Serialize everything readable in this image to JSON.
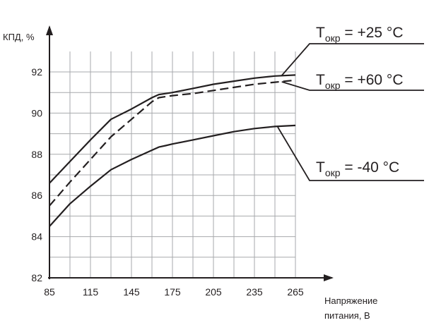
{
  "chart_data": {
    "type": "line",
    "title": "",
    "xlabel": [
      "Напряжение",
      "питания, В"
    ],
    "ylabel": "КПД, %",
    "xlim": [
      85,
      265
    ],
    "ylim": [
      82,
      92
    ],
    "x_ticks": [
      "85",
      "115",
      "145",
      "175",
      "205",
      "235",
      "265"
    ],
    "y_ticks": [
      "82",
      "84",
      "86",
      "88",
      "90",
      "92"
    ],
    "grid": true,
    "series": [
      {
        "name": "Tокр = +25 °C",
        "label_main": "T",
        "label_sub": "окр",
        "label_rest": " = +25 °C",
        "style": "solid",
        "color": "#231f20",
        "x": [
          85,
          100,
          115,
          130,
          145,
          160,
          165,
          170,
          175,
          190,
          205,
          220,
          235,
          250,
          265
        ],
        "y": [
          86.6,
          87.65,
          88.7,
          89.7,
          90.2,
          90.75,
          90.9,
          90.95,
          91.0,
          91.2,
          91.4,
          91.55,
          91.7,
          91.8,
          91.85
        ]
      },
      {
        "name": "Tокр = +60 °C",
        "label_main": "T",
        "label_sub": "окр",
        "label_rest": " = +60 °C",
        "style": "dashed",
        "color": "#231f20",
        "x": [
          85,
          100,
          115,
          130,
          145,
          160,
          165,
          170,
          175,
          190,
          205,
          220,
          235,
          250,
          265
        ],
        "y": [
          85.5,
          86.65,
          87.75,
          88.85,
          89.7,
          90.55,
          90.75,
          90.8,
          90.85,
          90.95,
          91.1,
          91.25,
          91.4,
          91.5,
          91.6
        ]
      },
      {
        "name": "Tокр = -40 °C",
        "label_main": "T",
        "label_sub": "окр",
        "label_rest": " = -40 °C",
        "style": "solid",
        "color": "#231f20",
        "x": [
          85,
          100,
          115,
          130,
          145,
          160,
          165,
          170,
          175,
          190,
          205,
          220,
          235,
          250,
          265
        ],
        "y": [
          84.5,
          85.6,
          86.45,
          87.25,
          87.75,
          88.2,
          88.35,
          88.42,
          88.5,
          88.7,
          88.9,
          89.1,
          89.25,
          89.35,
          89.4
        ]
      }
    ]
  }
}
